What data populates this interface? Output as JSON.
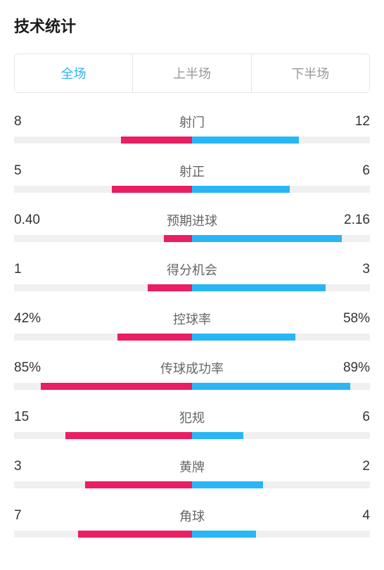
{
  "title": "技术统计",
  "tabs": [
    {
      "label": "全场",
      "active": true
    },
    {
      "label": "上半场",
      "active": false
    },
    {
      "label": "下半场",
      "active": false
    }
  ],
  "colors": {
    "left_bar": "#e91e63",
    "right_bar": "#29b6f6",
    "track": "#f0f0f0",
    "active_tab": "#29b6f6",
    "inactive_tab": "#999999",
    "text_primary": "#333333",
    "text_label": "#666666"
  },
  "stats": [
    {
      "label": "射门",
      "left_value": "8",
      "right_value": "12",
      "left_pct": 40,
      "right_pct": 60
    },
    {
      "label": "射正",
      "left_value": "5",
      "right_value": "6",
      "left_pct": 45,
      "right_pct": 55
    },
    {
      "label": "预期进球",
      "left_value": "0.40",
      "right_value": "2.16",
      "left_pct": 16,
      "right_pct": 84
    },
    {
      "label": "得分机会",
      "left_value": "1",
      "right_value": "3",
      "left_pct": 25,
      "right_pct": 75
    },
    {
      "label": "控球率",
      "left_value": "42%",
      "right_value": "58%",
      "left_pct": 42,
      "right_pct": 58
    },
    {
      "label": "传球成功率",
      "left_value": "85%",
      "right_value": "89%",
      "left_pct": 85,
      "right_pct": 89
    },
    {
      "label": "犯规",
      "left_value": "15",
      "right_value": "6",
      "left_pct": 71,
      "right_pct": 29
    },
    {
      "label": "黄牌",
      "left_value": "3",
      "right_value": "2",
      "left_pct": 60,
      "right_pct": 40
    },
    {
      "label": "角球",
      "left_value": "7",
      "right_value": "4",
      "left_pct": 64,
      "right_pct": 36
    }
  ]
}
